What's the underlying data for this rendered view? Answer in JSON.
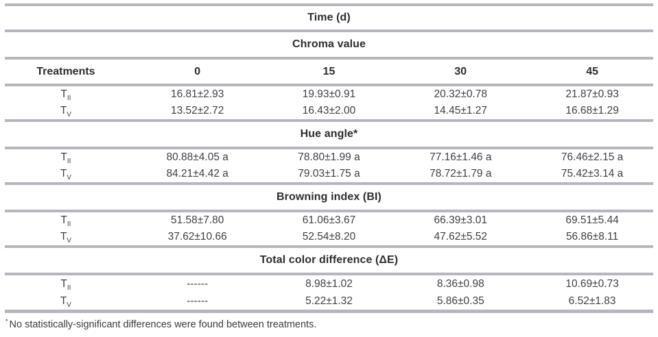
{
  "table": {
    "title": "Time (d)",
    "column_headers": [
      "Treatments",
      "0",
      "15",
      "30",
      "45"
    ],
    "sections": [
      {
        "name": "Chroma value",
        "rows": [
          {
            "treatment_base": "T",
            "treatment_sub": "II",
            "values": [
              "16.81±2.93",
              "19.93±0.91",
              "20.32±0.78",
              "21.87±0.93"
            ]
          },
          {
            "treatment_base": "T",
            "treatment_sub": "V",
            "values": [
              "13.52±2.72",
              "16.43±2.00",
              "14.45±1.27",
              "16.68±1.29"
            ]
          }
        ]
      },
      {
        "name": "Hue angle*",
        "rows": [
          {
            "treatment_base": "T",
            "treatment_sub": "II",
            "values": [
              "80.88±4.05 a",
              "78.80±1.99 a",
              "77.16±1.46 a",
              "76.46±2.15 a"
            ]
          },
          {
            "treatment_base": "T",
            "treatment_sub": "V",
            "values": [
              "84.21±4.42 a",
              "79.03±1.75 a",
              "78.72±1.79 a",
              "75.42±3.14 a"
            ]
          }
        ]
      },
      {
        "name": "Browning index (BI)",
        "rows": [
          {
            "treatment_base": "T",
            "treatment_sub": "II",
            "values": [
              "51.58±7.80",
              "61.06±3.67",
              "66.39±3.01",
              "69.51±5.44"
            ]
          },
          {
            "treatment_base": "T",
            "treatment_sub": "V",
            "values": [
              "37.62±10.66",
              "52.54±8.20",
              "47.62±5.52",
              "56.86±8.11"
            ]
          }
        ]
      },
      {
        "name": "Total color difference (ΔE)",
        "rows": [
          {
            "treatment_base": "T",
            "treatment_sub": "II",
            "values": [
              "------",
              "8.98±1.02",
              "8.36±0.98",
              "10.69±0.73"
            ]
          },
          {
            "treatment_base": "T",
            "treatment_sub": "V",
            "values": [
              "------",
              "5.22±1.32",
              "5.86±0.35",
              "6.52±1.83"
            ]
          }
        ]
      }
    ],
    "footnote_marker": "*",
    "footnote_text": "No statistically-significant differences were found between treatments."
  },
  "colors": {
    "rule": "#b6b7be",
    "header_text": "#2d2d2d",
    "body_text": "#3f3f3f",
    "background": "#ffffff"
  }
}
